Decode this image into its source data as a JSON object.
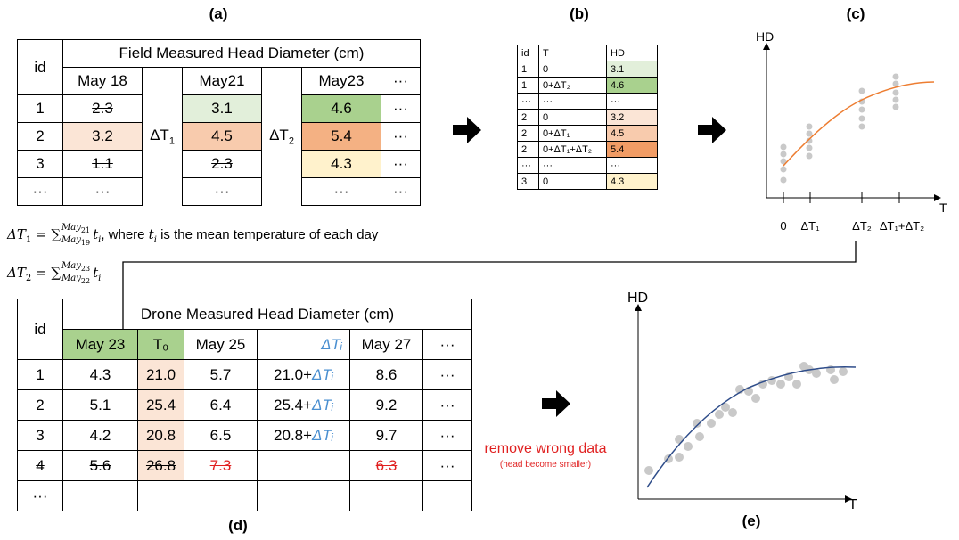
{
  "panel_labels": {
    "a": "(a)",
    "b": "(b)",
    "c": "(c)",
    "d": "(d)",
    "e": "(e)"
  },
  "table_a": {
    "id_header": "id",
    "title": "Field Measured Head Diameter (cm)",
    "dates": [
      "May 18",
      "May21",
      "May23",
      "···"
    ],
    "delta1_base": "ΔT",
    "delta1_sub": "1",
    "delta2_base": "ΔT",
    "delta2_sub": "2",
    "rows": [
      {
        "id": "1",
        "v1": "2.3",
        "v2": "3.1",
        "v3": "4.6",
        "more": "···"
      },
      {
        "id": "2",
        "v1": "3.2",
        "v2": "4.5",
        "v3": "5.4",
        "more": "···"
      },
      {
        "id": "3",
        "v1": "1.1",
        "v2": "2.3",
        "v3": "4.3",
        "more": "···"
      },
      {
        "id": "···",
        "v1": "···",
        "v2": "···",
        "v3": "···",
        "more": "···"
      }
    ]
  },
  "formula1": {
    "lhs": "ΔT",
    "lhs_sub": "1",
    "sum": " = ∑",
    "sup": "May",
    "sup_sub": "21",
    "sub": "May",
    "sub_sub": "19",
    "t": "t",
    "t_sub": "i",
    "tail": ", where ",
    "t2": "t",
    "t2_sub": "i",
    "tail2": " is the mean temperature of each day"
  },
  "formula2": {
    "lhs": "ΔT",
    "lhs_sub": "2",
    "sum": " = ∑",
    "sup": "May",
    "sup_sub": "23",
    "sub": "May",
    "sub_sub": "22",
    "t": "t",
    "t_sub": "i"
  },
  "table_b": {
    "headers": [
      "id",
      "T",
      "HD"
    ],
    "rows": [
      [
        "1",
        "0",
        "3.1"
      ],
      [
        "1",
        "0+ΔT₂",
        "4.6"
      ],
      [
        "···",
        "···",
        "···"
      ],
      [
        "2",
        "0",
        "3.2"
      ],
      [
        "2",
        "0+ΔT₁",
        "4.5"
      ],
      [
        "2",
        "0+ΔT₁+ΔT₂",
        "5.4"
      ],
      [
        "···",
        "···",
        "···"
      ],
      [
        "3",
        "0",
        "4.3"
      ]
    ]
  },
  "chart_c": {
    "y_label": "HD",
    "x_label": "T",
    "ticks": [
      "0",
      "ΔT₁",
      "ΔT₂",
      "ΔT₁+ΔT₂"
    ]
  },
  "table_d": {
    "id_header": "id",
    "title": "Drone Measured Head Diameter (cm)",
    "cols": [
      "May 23",
      "T₀",
      "May 25",
      "ΔTᵢ",
      "May 27",
      "···"
    ],
    "rows": [
      [
        "1",
        "4.3",
        "21.0",
        "5.7",
        "21.0+",
        "8.6",
        "···"
      ],
      [
        "2",
        "5.1",
        "25.4",
        "6.4",
        "25.4+",
        "9.2",
        "···"
      ],
      [
        "3",
        "4.2",
        "20.8",
        "6.5",
        "20.8+",
        "9.7",
        "···"
      ],
      [
        "4",
        "5.6",
        "26.8",
        "7.3",
        "",
        "6.3",
        "···"
      ],
      [
        "···",
        "",
        "",
        "",
        "",
        "",
        ""
      ]
    ],
    "delta_ti": "ΔTᵢ"
  },
  "remove_note": {
    "main": "remove wrong data",
    "sub": "(head become smaller)"
  },
  "chart_e": {
    "y_label": "HD",
    "x_label": "T"
  },
  "colors": {
    "green_light": "#e2efda",
    "green": "#a9d18e",
    "salmon_light": "#fbe5d6",
    "salmon": "#f4b183",
    "salmon_dark": "#f19c65",
    "yellow_light": "#fff2cc",
    "orange_curve": "#ed7d31",
    "blue_curve": "#2f4d8a",
    "dot": "#c9c9c9",
    "red": "#e02020",
    "blue_text": "#4a8fd0"
  }
}
